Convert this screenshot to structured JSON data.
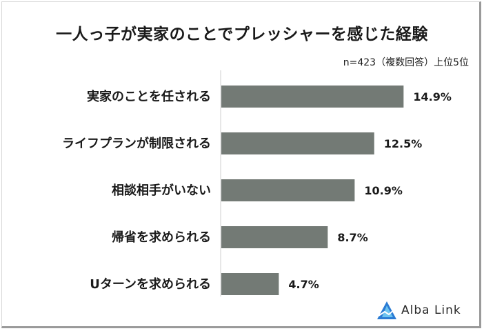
{
  "chart_data": {
    "type": "bar",
    "orientation": "horizontal",
    "title": "一人っ子が実家のことでプレッシャーを感じた経験",
    "note": "n=423（複数回答）上位5位",
    "categories": [
      "実家のことを任される",
      "ライフプランが制限される",
      "相談相手がいない",
      "帰省を求められる",
      "Uターンを求められる"
    ],
    "values": [
      14.9,
      12.5,
      10.9,
      8.7,
      4.7
    ],
    "value_labels": [
      "14.9%",
      "12.5%",
      "10.9%",
      "8.7%",
      "4.7%"
    ],
    "unit": "%",
    "xlim": [
      0,
      15.5
    ],
    "grid": false,
    "bar_color": "#737a75"
  },
  "brand": {
    "name": "Alba Link",
    "icon": "alba-link-logo-icon"
  }
}
